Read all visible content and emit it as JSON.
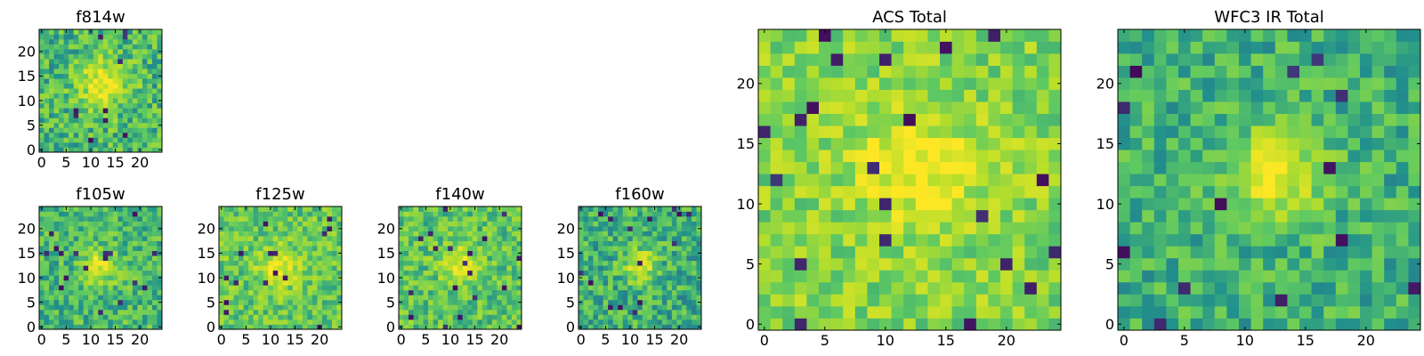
{
  "figure": {
    "description_free": true
  },
  "chart_data": [
    {
      "type": "heatmap",
      "title": "f814w",
      "xticks": [
        "0",
        "5",
        "10",
        "15",
        "20"
      ],
      "yticks": [
        "0",
        "5",
        "10",
        "15",
        "20"
      ],
      "xlim": [
        -0.5,
        24.5
      ],
      "ylim": [
        -0.5,
        24.5
      ],
      "grid_size": 25,
      "colormap": "viridis",
      "center": [
        12.5,
        13.5
      ],
      "peak": 0.95,
      "sigma": 3.5,
      "background": 0.55,
      "noise": 0.4,
      "seed": 11
    },
    {
      "type": "heatmap",
      "title": "f105w",
      "xticks": [
        "0",
        "5",
        "10",
        "15",
        "20"
      ],
      "yticks": [
        "0",
        "5",
        "10",
        "15",
        "20"
      ],
      "xlim": [
        -0.5,
        24.5
      ],
      "ylim": [
        -0.5,
        24.5
      ],
      "grid_size": 25,
      "colormap": "viridis",
      "center": [
        12.0,
        12.5
      ],
      "peak": 0.9,
      "sigma": 2.5,
      "background": 0.55,
      "noise": 0.35,
      "seed": 23
    },
    {
      "type": "heatmap",
      "title": "f125w",
      "xticks": [
        "0",
        "5",
        "10",
        "15",
        "20"
      ],
      "yticks": [
        "0",
        "5",
        "10",
        "15",
        "20"
      ],
      "xlim": [
        -0.5,
        24.5
      ],
      "ylim": [
        -0.5,
        24.5
      ],
      "grid_size": 25,
      "colormap": "viridis",
      "center": [
        11.5,
        12.0
      ],
      "peak": 0.95,
      "sigma": 2.8,
      "background": 0.62,
      "noise": 0.35,
      "seed": 37
    },
    {
      "type": "heatmap",
      "title": "f140w",
      "xticks": [
        "0",
        "5",
        "10",
        "15",
        "20"
      ],
      "yticks": [
        "0",
        "5",
        "10",
        "15",
        "20"
      ],
      "xlim": [
        -0.5,
        24.5
      ],
      "ylim": [
        -0.5,
        24.5
      ],
      "grid_size": 25,
      "colormap": "viridis",
      "center": [
        12.0,
        13.0
      ],
      "peak": 0.92,
      "sigma": 2.6,
      "background": 0.6,
      "noise": 0.35,
      "seed": 41
    },
    {
      "type": "heatmap",
      "title": "f160w",
      "xticks": [
        "0",
        "5",
        "10",
        "15",
        "20"
      ],
      "yticks": [
        "0",
        "5",
        "10",
        "15",
        "20"
      ],
      "xlim": [
        -0.5,
        24.5
      ],
      "ylim": [
        -0.5,
        24.5
      ],
      "grid_size": 25,
      "colormap": "viridis",
      "center": [
        12.0,
        12.5
      ],
      "peak": 0.9,
      "sigma": 2.4,
      "background": 0.52,
      "noise": 0.38,
      "seed": 53
    },
    {
      "type": "heatmap",
      "title": "ACS Total",
      "xticks": [
        "0",
        "5",
        "10",
        "15",
        "20"
      ],
      "yticks": [
        "0",
        "5",
        "10",
        "15",
        "20"
      ],
      "xlim": [
        -0.5,
        24.5
      ],
      "ylim": [
        -0.5,
        24.5
      ],
      "grid_size": 25,
      "colormap": "viridis",
      "center": [
        12.5,
        13.0
      ],
      "peak": 0.98,
      "sigma": 3.5,
      "background": 0.7,
      "noise": 0.35,
      "seed": 67
    },
    {
      "type": "heatmap",
      "title": "WFC3 IR Total",
      "xticks": [
        "0",
        "5",
        "10",
        "15",
        "20"
      ],
      "yticks": [
        "0",
        "5",
        "10",
        "15",
        "20"
      ],
      "xlim": [
        -0.5,
        24.5
      ],
      "ylim": [
        -0.5,
        24.5
      ],
      "grid_size": 25,
      "colormap": "viridis",
      "center": [
        12.5,
        12.5
      ],
      "peak": 0.98,
      "sigma": 2.6,
      "background": 0.52,
      "noise": 0.32,
      "seed": 79
    }
  ],
  "colors": {
    "viridis_stops": [
      "#440154",
      "#3b528b",
      "#21918c",
      "#5ec962",
      "#b5de2b",
      "#fde725"
    ],
    "axis": "#000000",
    "background": "#ffffff"
  }
}
